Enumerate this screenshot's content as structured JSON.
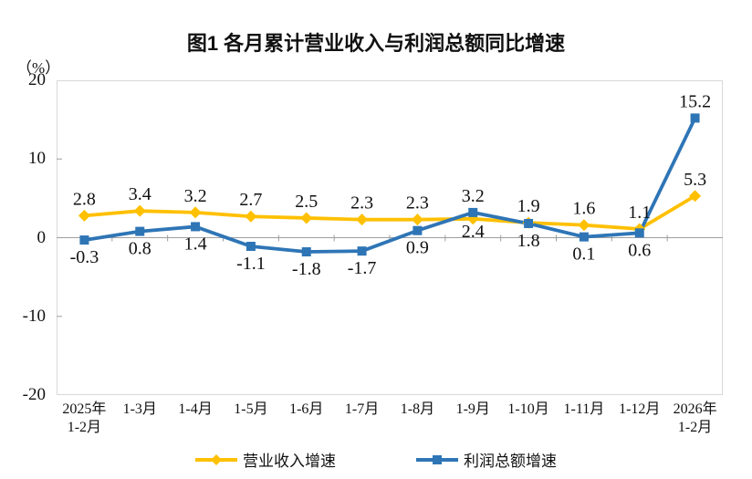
{
  "title": "图1  各月累计营业收入与利润总额同比增速",
  "y_axis": {
    "unit_label": "（%）",
    "ticks": [
      "20",
      "10",
      "0",
      "-10",
      "-20"
    ],
    "tick_values": [
      20,
      10,
      0,
      -10,
      -20
    ],
    "min": -20,
    "max": 20
  },
  "x_axis": {
    "labels": [
      [
        "2025年",
        "1-2月"
      ],
      [
        "1-3月"
      ],
      [
        "1-4月"
      ],
      [
        "1-5月"
      ],
      [
        "1-6月"
      ],
      [
        "1-7月"
      ],
      [
        "1-8月"
      ],
      [
        "1-9月"
      ],
      [
        "1-10月"
      ],
      [
        "1-11月"
      ],
      [
        "1-12月"
      ],
      [
        "2026年",
        "1-2月"
      ]
    ]
  },
  "chart_data": {
    "type": "line",
    "title": "图1  各月累计营业收入与利润总额同比增速",
    "xlabel": "",
    "ylabel": "（%）",
    "ylim": [
      -20,
      20
    ],
    "grid": false,
    "legend_position": "bottom",
    "categories": [
      "2025年1-2月",
      "1-3月",
      "1-4月",
      "1-5月",
      "1-6月",
      "1-7月",
      "1-8月",
      "1-9月",
      "1-10月",
      "1-11月",
      "1-12月",
      "2026年1-2月"
    ],
    "series": [
      {
        "name": "营业收入增速",
        "color": "#FFC000",
        "marker": "diamond",
        "values": [
          2.8,
          3.4,
          3.2,
          2.7,
          2.5,
          2.3,
          2.3,
          2.4,
          1.9,
          1.6,
          1.1,
          5.3
        ],
        "label_side": [
          "above",
          "above",
          "above",
          "above",
          "above",
          "above",
          "above",
          "below",
          "above",
          "above",
          "above",
          "above"
        ]
      },
      {
        "name": "利润总额增速",
        "color": "#2E75B6",
        "marker": "square",
        "values": [
          -0.3,
          0.8,
          1.4,
          -1.1,
          -1.8,
          -1.7,
          0.9,
          3.2,
          1.8,
          0.1,
          0.6,
          15.2
        ],
        "label_side": [
          "below",
          "below",
          "below",
          "below",
          "below",
          "below",
          "below",
          "above",
          "below",
          "below",
          "below",
          "above"
        ]
      }
    ]
  },
  "legend": [
    {
      "label": "营业收入增速",
      "color": "#FFC000",
      "marker": "diamond"
    },
    {
      "label": "利润总额增速",
      "color": "#2E75B6",
      "marker": "square"
    }
  ],
  "colors": {
    "revenue_series": "#FFC000",
    "profit_series": "#2E75B6",
    "plot_border": "#d9d9d9",
    "zero_axis": "#9e9e9e",
    "text": "#111111"
  }
}
